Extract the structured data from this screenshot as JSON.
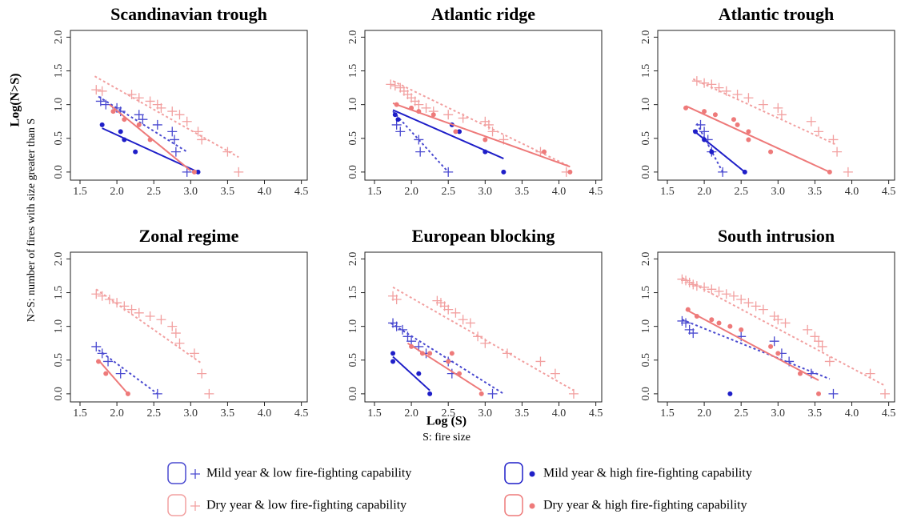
{
  "ylabel": "Log(N>S)",
  "ylabel_note": "N>S: number of fires with size greater than S",
  "xlabel": "Log (S)",
  "xlabel_note": "S: fire size",
  "legend": [
    {
      "name": "Mild year & low fire-fighting capability",
      "color": "#4a4ad0",
      "marker": "plus",
      "line": "dotted"
    },
    {
      "name": "Mild year & high fire-fighting capability",
      "color": "#1f1fc8",
      "marker": "dot",
      "line": "solid"
    },
    {
      "name": "Dry year & low fire-fighting capability",
      "color": "#f2a0a0",
      "marker": "plus",
      "line": "dotted"
    },
    {
      "name": "Dry year & high fire-fighting capability",
      "color": "#ee7a7a",
      "marker": "dot",
      "line": "solid"
    }
  ],
  "chart_data": [
    {
      "type": "scatter",
      "title": "Scandinavian trough",
      "xlim": [
        1.37,
        4.58
      ],
      "ylim": [
        -0.12,
        2.1
      ],
      "xticks": [
        1.5,
        {
          "value": 2,
          "label": "2.0"
        },
        2.5,
        {
          "value": 3,
          "label": "3.0"
        },
        3.5,
        {
          "value": 4,
          "label": "4.0"
        },
        4.5
      ],
      "yticks": [
        {
          "value": 0,
          "label": "0.0"
        },
        0.5,
        {
          "value": 1,
          "label": "1.0"
        },
        1.5,
        {
          "value": 2,
          "label": "2.0"
        }
      ],
      "series": [
        {
          "x": [
            1.78,
            1.85,
            2.0,
            2.05,
            2.3,
            2.35,
            2.55,
            2.75,
            2.78,
            2.8,
            2.95
          ],
          "y": [
            1.05,
            1.0,
            0.95,
            0.9,
            0.85,
            0.78,
            0.7,
            0.6,
            0.48,
            0.3,
            0.0
          ],
          "fit": {
            "x": [
              1.75,
              2.95
            ],
            "y": [
              1.12,
              0.3
            ]
          }
        },
        {
          "x": [
            1.8,
            2.05,
            2.1,
            2.25,
            3.1
          ],
          "y": [
            0.7,
            0.6,
            0.48,
            0.3,
            0.0
          ],
          "fit": {
            "x": [
              1.8,
              3.1
            ],
            "y": [
              0.65,
              0.0
            ]
          }
        },
        {
          "x": [
            1.72,
            1.8,
            2.2,
            2.3,
            2.45,
            2.55,
            2.6,
            2.75,
            2.85,
            2.95,
            3.1,
            3.15,
            3.5,
            3.65
          ],
          "y": [
            1.22,
            1.2,
            1.15,
            1.1,
            1.05,
            1.0,
            0.95,
            0.9,
            0.85,
            0.75,
            0.6,
            0.48,
            0.3,
            0.0
          ],
          "fit": {
            "x": [
              1.7,
              3.65
            ],
            "y": [
              1.42,
              0.22
            ]
          }
        },
        {
          "x": [
            1.95,
            2.1,
            2.3,
            2.45,
            3.05
          ],
          "y": [
            0.9,
            0.78,
            0.7,
            0.48,
            0.0
          ],
          "fit": {
            "x": [
              1.9,
              3.0
            ],
            "y": [
              1.0,
              0.02
            ]
          }
        }
      ]
    },
    {
      "type": "scatter",
      "title": "Atlantic ridge",
      "xlim": [
        1.37,
        4.58
      ],
      "ylim": [
        -0.12,
        2.1
      ],
      "xticks": [
        1.5,
        {
          "value": 2,
          "label": "2.0"
        },
        2.5,
        {
          "value": 3,
          "label": "3.0"
        },
        3.5,
        {
          "value": 4,
          "label": "4.0"
        },
        4.5
      ],
      "yticks": [
        {
          "value": 0,
          "label": "0.0"
        },
        0.5,
        {
          "value": 1,
          "label": "1.0"
        },
        1.5,
        {
          "value": 2,
          "label": "2.0"
        }
      ],
      "series": [
        {
          "x": [
            1.8,
            1.85,
            2.1,
            2.12,
            2.5
          ],
          "y": [
            0.7,
            0.6,
            0.48,
            0.3,
            0.0
          ],
          "fit": {
            "x": [
              1.75,
              2.5
            ],
            "y": [
              0.9,
              0.0
            ]
          }
        },
        {
          "x": [
            1.78,
            1.82,
            2.55,
            2.65,
            3.0,
            3.25
          ],
          "y": [
            0.85,
            0.78,
            0.7,
            0.6,
            0.3,
            0.0
          ],
          "fit": {
            "x": [
              1.75,
              3.25
            ],
            "y": [
              0.92,
              0.2
            ]
          }
        },
        {
          "x": [
            1.72,
            1.78,
            1.85,
            1.9,
            1.95,
            2.0,
            2.05,
            2.1,
            2.2,
            2.3,
            2.5,
            2.7,
            3.0,
            3.05,
            3.1,
            3.25,
            3.75,
            4.1
          ],
          "y": [
            1.3,
            1.28,
            1.25,
            1.2,
            1.15,
            1.1,
            1.05,
            1.0,
            0.95,
            0.9,
            0.85,
            0.8,
            0.75,
            0.7,
            0.6,
            0.48,
            0.3,
            0.0
          ],
          "fit": {
            "x": [
              1.75,
              4.15
            ],
            "y": [
              1.35,
              0.08
            ]
          }
        },
        {
          "x": [
            1.8,
            2.0,
            2.1,
            2.3,
            2.6,
            3.0,
            3.8,
            4.15
          ],
          "y": [
            1.0,
            0.95,
            0.9,
            0.85,
            0.6,
            0.48,
            0.3,
            0.0
          ],
          "fit": {
            "x": [
              1.75,
              4.15
            ],
            "y": [
              1.02,
              0.08
            ]
          }
        }
      ]
    },
    {
      "type": "scatter",
      "title": "Atlantic trough",
      "xlim": [
        1.37,
        4.58
      ],
      "ylim": [
        -0.12,
        2.1
      ],
      "xticks": [
        1.5,
        {
          "value": 2,
          "label": "2.0"
        },
        2.5,
        {
          "value": 3,
          "label": "3.0"
        },
        3.5,
        {
          "value": 4,
          "label": "4.0"
        },
        4.5
      ],
      "yticks": [
        {
          "value": 0,
          "label": "0.0"
        },
        0.5,
        {
          "value": 1,
          "label": "1.0"
        },
        1.5,
        {
          "value": 2,
          "label": "2.0"
        }
      ],
      "series": [
        {
          "x": [
            1.95,
            2.0,
            2.05,
            2.1,
            2.25
          ],
          "y": [
            0.7,
            0.6,
            0.48,
            0.3,
            0.0
          ],
          "fit": {
            "x": [
              1.9,
              2.25
            ],
            "y": [
              0.72,
              0.0
            ]
          }
        },
        {
          "x": [
            1.88,
            2.0,
            2.1,
            2.55
          ],
          "y": [
            0.6,
            0.48,
            0.3,
            0.0
          ],
          "fit": {
            "x": [
              1.85,
              2.55
            ],
            "y": [
              0.62,
              0.0
            ]
          }
        },
        {
          "x": [
            1.9,
            2.0,
            2.1,
            2.2,
            2.3,
            2.45,
            2.6,
            2.8,
            3.0,
            3.05,
            3.45,
            3.55,
            3.75,
            3.8,
            3.95
          ],
          "y": [
            1.35,
            1.32,
            1.3,
            1.25,
            1.2,
            1.15,
            1.1,
            1.0,
            0.95,
            0.85,
            0.75,
            0.6,
            0.48,
            0.3,
            0.0
          ],
          "fit": {
            "x": [
              1.85,
              3.8
            ],
            "y": [
              1.38,
              0.4
            ]
          }
        },
        {
          "x": [
            1.75,
            2.0,
            2.15,
            2.4,
            2.45,
            2.6,
            2.6,
            2.9,
            3.7
          ],
          "y": [
            0.95,
            0.9,
            0.85,
            0.78,
            0.7,
            0.6,
            0.48,
            0.3,
            0.0
          ],
          "fit": {
            "x": [
              1.75,
              3.7
            ],
            "y": [
              0.98,
              0.0
            ]
          }
        }
      ]
    },
    {
      "type": "scatter",
      "title": "Zonal regime",
      "xlim": [
        1.37,
        4.58
      ],
      "ylim": [
        -0.12,
        2.1
      ],
      "xticks": [
        1.5,
        {
          "value": 2,
          "label": "2.0"
        },
        2.5,
        {
          "value": 3,
          "label": "3.0"
        },
        3.5,
        {
          "value": 4,
          "label": "4.0"
        },
        4.5
      ],
      "yticks": [
        {
          "value": 0,
          "label": "0.0"
        },
        0.5,
        {
          "value": 1,
          "label": "1.0"
        },
        1.5,
        {
          "value": 2,
          "label": "2.0"
        }
      ],
      "series": [
        {
          "x": [
            1.72,
            1.8,
            1.88,
            2.05,
            2.55
          ],
          "y": [
            0.7,
            0.6,
            0.48,
            0.3,
            0.0
          ],
          "fit": {
            "x": [
              1.75,
              2.55
            ],
            "y": [
              0.65,
              0.0
            ]
          }
        },
        {
          "x": [],
          "y": []
        },
        {
          "x": [
            1.72,
            1.8,
            1.9,
            2.0,
            2.1,
            2.2,
            2.3,
            2.45,
            2.6,
            2.75,
            2.8,
            2.85,
            3.05,
            3.15,
            3.25
          ],
          "y": [
            1.48,
            1.45,
            1.4,
            1.35,
            1.3,
            1.25,
            1.2,
            1.15,
            1.1,
            1.0,
            0.9,
            0.75,
            0.6,
            0.3,
            0.0
          ],
          "fit": {
            "x": [
              1.72,
              3.15
            ],
            "y": [
              1.55,
              0.45
            ]
          }
        },
        {
          "x": [
            1.75,
            1.85,
            2.15
          ],
          "y": [
            0.48,
            0.3,
            0.0
          ],
          "fit": {
            "x": [
              1.75,
              2.15
            ],
            "y": [
              0.5,
              0.0
            ]
          }
        }
      ]
    },
    {
      "type": "scatter",
      "title": "European blocking",
      "xlim": [
        1.37,
        4.58
      ],
      "ylim": [
        -0.12,
        2.1
      ],
      "xticks": [
        1.5,
        {
          "value": 2,
          "label": "2.0"
        },
        2.5,
        {
          "value": 3,
          "label": "3.0"
        },
        3.5,
        {
          "value": 4,
          "label": "4.0"
        },
        4.5
      ],
      "yticks": [
        {
          "value": 0,
          "label": "0.0"
        },
        0.5,
        {
          "value": 1,
          "label": "1.0"
        },
        1.5,
        {
          "value": 2,
          "label": "2.0"
        }
      ],
      "series": [
        {
          "x": [
            1.75,
            1.8,
            1.88,
            1.95,
            2.0,
            2.1,
            2.2,
            2.5,
            2.55,
            3.1
          ],
          "y": [
            1.05,
            1.0,
            0.95,
            0.85,
            0.78,
            0.7,
            0.6,
            0.48,
            0.3,
            0.0
          ],
          "fit": {
            "x": [
              1.72,
              3.25
            ],
            "y": [
              1.05,
              0.0
            ]
          }
        },
        {
          "x": [
            1.75,
            1.75,
            2.1,
            2.25
          ],
          "y": [
            0.6,
            0.48,
            0.3,
            0.0
          ],
          "fit": {
            "x": [
              1.75,
              2.25
            ],
            "y": [
              0.55,
              0.05
            ]
          }
        },
        {
          "x": [
            1.75,
            1.8,
            2.35,
            2.4,
            2.45,
            2.5,
            2.6,
            2.7,
            2.8,
            2.9,
            3.0,
            3.3,
            3.75,
            3.95,
            4.2
          ],
          "y": [
            1.45,
            1.4,
            1.38,
            1.35,
            1.3,
            1.25,
            1.2,
            1.1,
            1.05,
            0.85,
            0.75,
            0.6,
            0.48,
            0.3,
            0.0
          ],
          "fit": {
            "x": [
              1.75,
              4.2
            ],
            "y": [
              1.58,
              0.05
            ]
          }
        },
        {
          "x": [
            2.0,
            2.15,
            2.25,
            2.5,
            2.55,
            2.65,
            2.95
          ],
          "y": [
            0.7,
            0.6,
            0.6,
            0.48,
            0.6,
            0.3,
            0.0
          ],
          "fit": {
            "x": [
              1.95,
              2.95
            ],
            "y": [
              0.75,
              0.05
            ]
          }
        }
      ]
    },
    {
      "type": "scatter",
      "title": "South intrusion",
      "xlim": [
        1.37,
        4.58
      ],
      "ylim": [
        -0.12,
        2.1
      ],
      "xticks": [
        1.5,
        {
          "value": 2,
          "label": "2.0"
        },
        2.5,
        {
          "value": 3,
          "label": "3.0"
        },
        3.5,
        {
          "value": 4,
          "label": "4.0"
        },
        4.5
      ],
      "yticks": [
        {
          "value": 0,
          "label": "0.0"
        },
        0.5,
        {
          "value": 1,
          "label": "1.0"
        },
        1.5,
        {
          "value": 2,
          "label": "2.0"
        }
      ],
      "series": [
        {
          "x": [
            1.7,
            1.75,
            1.8,
            1.85,
            2.5,
            2.95,
            3.05,
            3.15,
            3.45,
            3.75
          ],
          "y": [
            1.08,
            1.05,
            0.95,
            0.9,
            0.85,
            0.78,
            0.6,
            0.48,
            0.3,
            0.0
          ],
          "fit": {
            "x": [
              1.7,
              3.7
            ],
            "y": [
              1.1,
              0.22
            ]
          }
        },
        {
          "x": [
            2.35
          ],
          "y": [
            0.0
          ]
        },
        {
          "x": [
            1.7,
            1.75,
            1.8,
            1.85,
            1.9,
            2.0,
            2.1,
            2.2,
            2.3,
            2.4,
            2.5,
            2.6,
            2.7,
            2.8,
            2.95,
            3.0,
            3.1,
            3.4,
            3.5,
            3.55,
            3.6,
            3.7,
            4.25,
            4.45
          ],
          "y": [
            1.7,
            1.68,
            1.65,
            1.62,
            1.6,
            1.58,
            1.55,
            1.52,
            1.48,
            1.45,
            1.4,
            1.35,
            1.3,
            1.25,
            1.15,
            1.1,
            1.05,
            0.95,
            0.85,
            0.78,
            0.7,
            0.48,
            0.3,
            0.0
          ],
          "fit": {
            "x": [
              1.7,
              4.45
            ],
            "y": [
              1.72,
              0.12
            ]
          }
        },
        {
          "x": [
            1.78,
            1.9,
            2.1,
            2.2,
            2.35,
            2.5,
            2.9,
            3.0,
            3.3,
            3.55
          ],
          "y": [
            1.25,
            1.15,
            1.1,
            1.05,
            1.0,
            0.95,
            0.7,
            0.6,
            0.3,
            0.0
          ],
          "fit": {
            "x": [
              1.75,
              3.55
            ],
            "y": [
              1.25,
              0.2
            ]
          }
        }
      ]
    }
  ]
}
